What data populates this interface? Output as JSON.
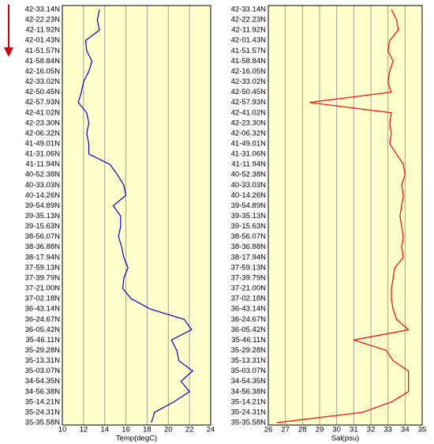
{
  "chart_data": [
    {
      "type": "line",
      "xlabel": "Temp(degC)",
      "color": "#0000cc",
      "categories": [
        "42-33.14N",
        "42-22.23N",
        "42-11.92N",
        "42-01.43N",
        "41-51.57N",
        "41-58.84N",
        "42-16.05N",
        "42-33.02N",
        "42-50.45N",
        "42-57.93N",
        "42-41.02N",
        "42-23.30N",
        "42-06.32N",
        "41-49.01N",
        "41-31.06N",
        "41-11.94N",
        "40-52.38N",
        "40-33.03N",
        "40-14.26N",
        "39-54.89N",
        "39-35.13N",
        "39-15.63N",
        "38-56.07N",
        "38-36.88N",
        "38-17.94N",
        "37-59.13N",
        "37-39.79N",
        "37-21.00N",
        "37-02.18N",
        "36-43.14N",
        "36-24.67N",
        "36-05.42N",
        "35-46.11N",
        "35-29.28N",
        "35-13.31N",
        "35-03.07N",
        "34-54.35N",
        "34-56.38N",
        "35-14.21N",
        "35-24.31N",
        "35-35.58N"
      ],
      "values": [
        13.5,
        13.3,
        13.5,
        12.2,
        12.3,
        12.8,
        12.5,
        12.0,
        11.8,
        11.5,
        12.3,
        12.5,
        12.3,
        12.5,
        12.5,
        14.5,
        15.2,
        15.8,
        16.0,
        14.8,
        15.5,
        15.5,
        15.3,
        15.6,
        15.8,
        16.2,
        15.8,
        15.7,
        16.5,
        18.3,
        21.5,
        22.2,
        20.3,
        20.8,
        21.0,
        22.3,
        21.2,
        22.0,
        20.5,
        18.7,
        18.4
      ],
      "xlim": [
        10,
        24
      ],
      "xticks": [
        10,
        12,
        14,
        16,
        18,
        20,
        22,
        24
      ],
      "grid": true
    },
    {
      "type": "line",
      "xlabel": "Sal(psu)",
      "color": "#ff0000",
      "categories": [
        "42-33.14N",
        "42-22.23N",
        "42-11.92N",
        "42-01.43N",
        "41-51.57N",
        "41-58.84N",
        "42-16.05N",
        "42-33.02N",
        "42-50.45N",
        "42-57.93N",
        "42-41.02N",
        "42-23.30N",
        "42-06.32N",
        "41-49.01N",
        "41-31.06N",
        "41-11.94N",
        "40-52.38N",
        "40-33.03N",
        "40-14.26N",
        "39-54.89N",
        "39-35.13N",
        "39-15.63N",
        "38-56.07N",
        "38-36.88N",
        "38-17.94N",
        "37-59.13N",
        "37-39.79N",
        "37-21.00N",
        "37-02.18N",
        "36-43.14N",
        "36-24.67N",
        "36-05.42N",
        "35-46.11N",
        "35-29.28N",
        "35-13.31N",
        "35-03.07N",
        "34-54.35N",
        "34-56.38N",
        "35-14.21N",
        "35-24.31N",
        "35-35.58N"
      ],
      "values": [
        33.2,
        33.5,
        33.6,
        33.1,
        33.0,
        33.3,
        33.1,
        33.0,
        33.2,
        28.4,
        33.2,
        33.1,
        33.2,
        33.1,
        33.5,
        33.9,
        34.0,
        33.8,
        33.9,
        33.8,
        33.7,
        33.8,
        33.9,
        33.8,
        33.9,
        33.4,
        33.3,
        33.2,
        33.2,
        33.3,
        33.5,
        34.2,
        31.0,
        32.9,
        33.3,
        34.2,
        34.2,
        34.2,
        33.2,
        31.5,
        26.5
      ],
      "xlim": [
        26,
        35
      ],
      "xticks": [
        26,
        27,
        28,
        29,
        30,
        31,
        32,
        33,
        34,
        35
      ],
      "grid": true
    }
  ]
}
